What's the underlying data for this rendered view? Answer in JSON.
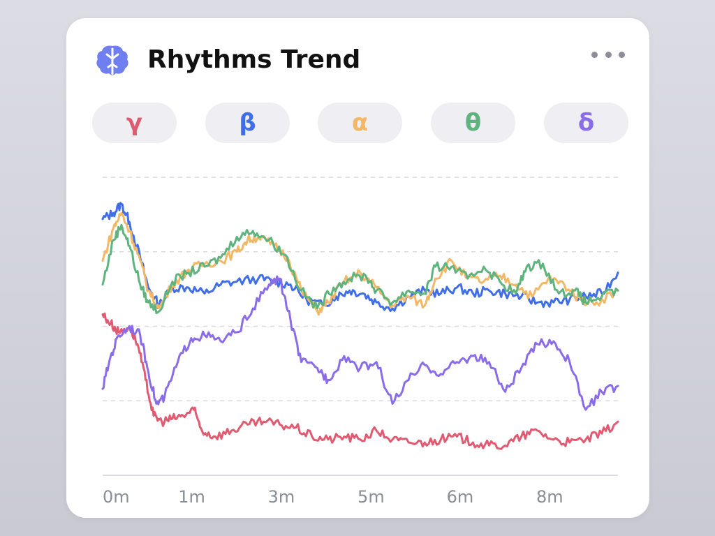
{
  "header": {
    "title": "Rhythms Trend",
    "icon": "brain-icon",
    "menu_icon": "more-horizontal-icon"
  },
  "chips": [
    {
      "label": "γ",
      "color": "#e05a71"
    },
    {
      "label": "β",
      "color": "#3f6ee8"
    },
    {
      "label": "α",
      "color": "#f2b866"
    },
    {
      "label": "θ",
      "color": "#5fb37e"
    },
    {
      "label": "δ",
      "color": "#8a6ce8"
    }
  ],
  "chart_data": {
    "type": "line",
    "xlabel": "",
    "ylabel": "",
    "grid": true,
    "xlim": [
      0,
      9.6
    ],
    "ylim": [
      0,
      100
    ],
    "x_ticks": [
      {
        "label": "0m",
        "value": 0
      },
      {
        "label": "1m",
        "value": 1
      },
      {
        "label": "3m",
        "value": 2
      },
      {
        "label": "5m",
        "value": 3
      },
      {
        "label": "6m",
        "value": 4
      },
      {
        "label": "8m",
        "value": 5
      }
    ],
    "x_tick_scale": [
      0,
      1.66,
      3.33,
      5.0,
      6.66,
      8.33
    ],
    "series": [
      {
        "name": "β",
        "color": "#3f6ee8",
        "points": [
          [
            0,
            86
          ],
          [
            0.2,
            88
          ],
          [
            0.35,
            91
          ],
          [
            0.5,
            85
          ],
          [
            0.7,
            73
          ],
          [
            0.85,
            63
          ],
          [
            1.05,
            57
          ],
          [
            1.3,
            63
          ],
          [
            1.6,
            63
          ],
          [
            1.9,
            61
          ],
          [
            2.2,
            64
          ],
          [
            2.5,
            65
          ],
          [
            2.9,
            66
          ],
          [
            3.2,
            65
          ],
          [
            3.5,
            64
          ],
          [
            3.8,
            59
          ],
          [
            4.1,
            57
          ],
          [
            4.35,
            60
          ],
          [
            4.6,
            62
          ],
          [
            4.85,
            61
          ],
          [
            5.1,
            58
          ],
          [
            5.4,
            56
          ],
          [
            5.7,
            60
          ],
          [
            6.0,
            62
          ],
          [
            6.3,
            61
          ],
          [
            6.6,
            63
          ],
          [
            6.9,
            61
          ],
          [
            7.2,
            62
          ],
          [
            7.5,
            61
          ],
          [
            7.8,
            60
          ],
          [
            8.1,
            58
          ],
          [
            8.4,
            58
          ],
          [
            8.7,
            59
          ],
          [
            9.0,
            60
          ],
          [
            9.3,
            61
          ],
          [
            9.6,
            68
          ]
        ]
      },
      {
        "name": "α",
        "color": "#f2b866",
        "points": [
          [
            0,
            72
          ],
          [
            0.2,
            83
          ],
          [
            0.35,
            88
          ],
          [
            0.5,
            82
          ],
          [
            0.7,
            72
          ],
          [
            0.85,
            62
          ],
          [
            1.05,
            56
          ],
          [
            1.3,
            64
          ],
          [
            1.6,
            69
          ],
          [
            1.9,
            71
          ],
          [
            2.2,
            72
          ],
          [
            2.5,
            75
          ],
          [
            2.7,
            79
          ],
          [
            2.9,
            80
          ],
          [
            3.2,
            77
          ],
          [
            3.45,
            73
          ],
          [
            3.7,
            62
          ],
          [
            4.0,
            55
          ],
          [
            4.2,
            58
          ],
          [
            4.5,
            65
          ],
          [
            4.8,
            68
          ],
          [
            5.1,
            63
          ],
          [
            5.4,
            57
          ],
          [
            5.7,
            60
          ],
          [
            6.0,
            57
          ],
          [
            6.2,
            66
          ],
          [
            6.5,
            72
          ],
          [
            6.8,
            66
          ],
          [
            7.1,
            65
          ],
          [
            7.4,
            67
          ],
          [
            7.7,
            64
          ],
          [
            8.0,
            60
          ],
          [
            8.3,
            66
          ],
          [
            8.6,
            64
          ],
          [
            8.9,
            59
          ],
          [
            9.2,
            58
          ],
          [
            9.6,
            62
          ]
        ]
      },
      {
        "name": "θ",
        "color": "#5fb37e",
        "points": [
          [
            0,
            64
          ],
          [
            0.2,
            79
          ],
          [
            0.35,
            84
          ],
          [
            0.5,
            77
          ],
          [
            0.7,
            64
          ],
          [
            0.85,
            58
          ],
          [
            1.05,
            55
          ],
          [
            1.3,
            65
          ],
          [
            1.6,
            68
          ],
          [
            1.9,
            70
          ],
          [
            2.2,
            73
          ],
          [
            2.5,
            80
          ],
          [
            2.8,
            82
          ],
          [
            3.1,
            79
          ],
          [
            3.4,
            74
          ],
          [
            3.7,
            62
          ],
          [
            4.0,
            56
          ],
          [
            4.3,
            63
          ],
          [
            4.6,
            66
          ],
          [
            4.9,
            67
          ],
          [
            5.1,
            62
          ],
          [
            5.4,
            58
          ],
          [
            5.7,
            62
          ],
          [
            6.0,
            61
          ],
          [
            6.2,
            70
          ],
          [
            6.5,
            70
          ],
          [
            6.8,
            66
          ],
          [
            7.1,
            70
          ],
          [
            7.4,
            65
          ],
          [
            7.7,
            61
          ],
          [
            7.9,
            70
          ],
          [
            8.2,
            71
          ],
          [
            8.5,
            61
          ],
          [
            8.8,
            62
          ],
          [
            9.0,
            58
          ],
          [
            9.3,
            60
          ],
          [
            9.6,
            62
          ]
        ]
      },
      {
        "name": "γ",
        "color": "#e05a71",
        "points": [
          [
            0,
            54
          ],
          [
            0.15,
            51
          ],
          [
            0.3,
            48
          ],
          [
            0.5,
            50
          ],
          [
            0.65,
            44
          ],
          [
            0.8,
            32
          ],
          [
            0.95,
            20
          ],
          [
            1.1,
            18
          ],
          [
            1.3,
            19
          ],
          [
            1.5,
            20
          ],
          [
            1.7,
            22
          ],
          [
            1.85,
            15
          ],
          [
            2.1,
            13
          ],
          [
            2.4,
            15
          ],
          [
            2.7,
            17
          ],
          [
            3.0,
            18
          ],
          [
            3.3,
            17
          ],
          [
            3.6,
            16
          ],
          [
            3.9,
            13
          ],
          [
            4.2,
            12
          ],
          [
            4.5,
            13
          ],
          [
            4.8,
            12
          ],
          [
            5.1,
            15
          ],
          [
            5.4,
            12
          ],
          [
            5.7,
            11
          ],
          [
            6.0,
            11
          ],
          [
            6.3,
            12
          ],
          [
            6.6,
            13
          ],
          [
            6.9,
            11
          ],
          [
            7.2,
            10
          ],
          [
            7.5,
            10
          ],
          [
            7.8,
            13
          ],
          [
            8.1,
            15
          ],
          [
            8.4,
            12
          ],
          [
            8.7,
            11
          ],
          [
            9.0,
            12
          ],
          [
            9.3,
            14
          ],
          [
            9.6,
            18
          ]
        ]
      },
      {
        "name": "δ",
        "color": "#8a6ce8",
        "points": [
          [
            0,
            29
          ],
          [
            0.15,
            40
          ],
          [
            0.3,
            47
          ],
          [
            0.5,
            50
          ],
          [
            0.7,
            47
          ],
          [
            0.85,
            35
          ],
          [
            1.0,
            24
          ],
          [
            1.15,
            26
          ],
          [
            1.4,
            38
          ],
          [
            1.65,
            46
          ],
          [
            1.9,
            47
          ],
          [
            2.2,
            45
          ],
          [
            2.5,
            48
          ],
          [
            2.8,
            56
          ],
          [
            3.1,
            64
          ],
          [
            3.3,
            66
          ],
          [
            3.5,
            52
          ],
          [
            3.7,
            38
          ],
          [
            4.0,
            36
          ],
          [
            4.2,
            32
          ],
          [
            4.5,
            40
          ],
          [
            4.8,
            36
          ],
          [
            5.1,
            38
          ],
          [
            5.4,
            24
          ],
          [
            5.7,
            32
          ],
          [
            6.0,
            37
          ],
          [
            6.3,
            34
          ],
          [
            6.6,
            38
          ],
          [
            6.9,
            40
          ],
          [
            7.2,
            38
          ],
          [
            7.5,
            28
          ],
          [
            7.8,
            36
          ],
          [
            8.1,
            44
          ],
          [
            8.4,
            45
          ],
          [
            8.7,
            38
          ],
          [
            9.0,
            22
          ],
          [
            9.3,
            28
          ],
          [
            9.6,
            30
          ]
        ]
      }
    ]
  }
}
